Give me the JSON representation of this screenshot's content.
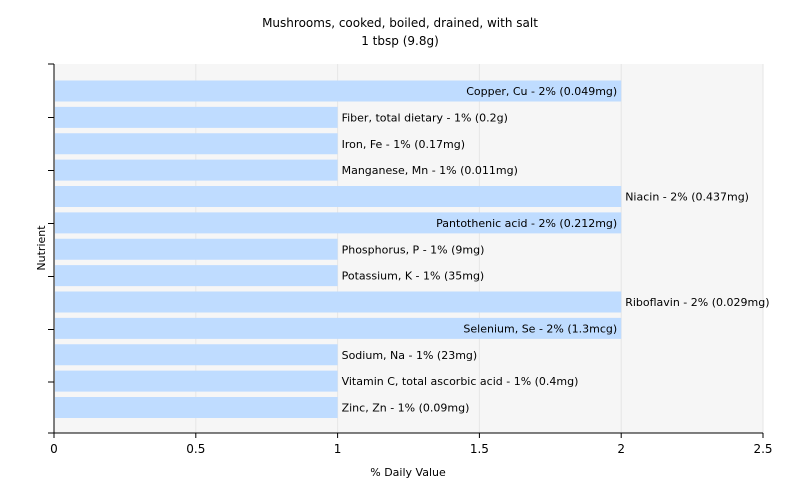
{
  "chart_data": {
    "type": "bar",
    "orientation": "horizontal",
    "title": "Mushrooms, cooked, boiled, drained, with salt",
    "subtitle": "1 tbsp (9.8g)",
    "xlabel": "% Daily Value",
    "ylabel": "Nutrient",
    "xlim": [
      0,
      2.5
    ],
    "xticks": [
      0,
      0.5,
      1,
      1.5,
      2,
      2.5
    ],
    "xtick_labels": [
      "0",
      "0.5",
      "1",
      "1.5",
      "2",
      "2.5"
    ],
    "grid": true,
    "bar_color": "#bfdcff",
    "categories": [
      "Copper, Cu",
      "Fiber, total dietary",
      "Iron, Fe",
      "Manganese, Mn",
      "Niacin",
      "Pantothenic acid",
      "Phosphorus, P",
      "Potassium, K",
      "Riboflavin",
      "Selenium, Se",
      "Sodium, Na",
      "Vitamin C, total ascorbic acid",
      "Zinc, Zn"
    ],
    "values": [
      2,
      1,
      1,
      1,
      2,
      2,
      1,
      1,
      2,
      2,
      1,
      1,
      1
    ],
    "data_labels": [
      "Copper, Cu - 2% (0.049mg)",
      "Fiber, total dietary - 1% (0.2g)",
      "Iron, Fe - 1% (0.17mg)",
      "Manganese, Mn - 1% (0.011mg)",
      "Niacin - 2% (0.437mg)",
      "Pantothenic acid - 2% (0.212mg)",
      "Phosphorus, P - 1% (9mg)",
      "Potassium, K - 1% (35mg)",
      "Riboflavin - 2% (0.029mg)",
      "Selenium, Se - 2% (1.3mcg)",
      "Sodium, Na - 1% (23mg)",
      "Vitamin C, total ascorbic acid - 1% (0.4mg)",
      "Zinc, Zn - 1% (0.09mg)"
    ],
    "label_placement": [
      "inside",
      "outside",
      "outside",
      "outside",
      "outside",
      "inside",
      "outside",
      "outside",
      "outside",
      "inside",
      "outside",
      "outside",
      "outside"
    ]
  }
}
